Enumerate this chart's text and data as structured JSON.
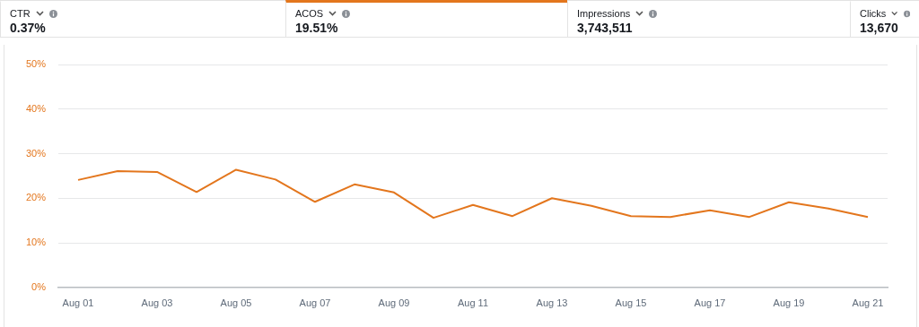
{
  "chart_data": {
    "type": "line",
    "annotations": [
      "CTR",
      "0.37%",
      "ACOS",
      "19.51%",
      "Impressions",
      "3,743,511",
      "Clicks",
      "13,670"
    ],
    "categories": [
      "Aug 01",
      null,
      "Aug 03",
      null,
      "Aug 05",
      null,
      "Aug 07",
      null,
      "Aug 09",
      null,
      "Aug 11",
      null,
      "Aug 13",
      null,
      "Aug 15",
      null,
      "Aug 17",
      null,
      "Aug 19",
      null,
      "Aug 21"
    ],
    "series": [
      {
        "color": "#e3761d",
        "values": [
          24.1,
          26.1,
          25.9,
          21.4,
          26.4,
          24.2,
          19.2,
          23.1,
          21.3,
          15.6,
          18.5,
          16.0,
          20.0,
          18.3,
          16.0,
          15.8,
          17.3,
          15.8,
          19.1,
          17.7,
          15.8
        ]
      }
    ],
    "ylim": [
      0,
      50
    ],
    "yticks": [
      {
        "value": 0,
        "label": "0%"
      },
      {
        "value": 10,
        "label": "10%"
      },
      {
        "value": 20,
        "label": "20%"
      },
      {
        "value": 30,
        "label": "30%"
      },
      {
        "value": 40,
        "label": "40%"
      },
      {
        "value": 50,
        "label": "50%"
      }
    ],
    "grid": "y",
    "legend": false,
    "marker": "none",
    "line_style": "solid"
  }
}
